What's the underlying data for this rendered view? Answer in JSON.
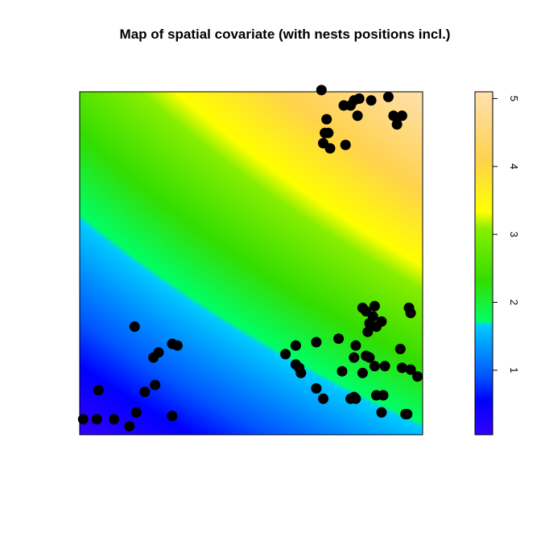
{
  "chart_data": {
    "type": "heatmap",
    "title": "Map of spatial covariate (with nests positions incl.)",
    "xlabel": "",
    "ylabel": "",
    "xlim": [
      0,
      1
    ],
    "ylim": [
      0,
      1
    ],
    "axes_visible": false,
    "field": {
      "description_of_surface": "smooth gradient increasing from bottom-left to top-right",
      "value_range": [
        0.05,
        5.1
      ]
    },
    "colorbar": {
      "range": [
        0.05,
        5.1
      ],
      "ticks": [
        1,
        2,
        3,
        4,
        5
      ],
      "tick_labels": [
        "1",
        "2",
        "3",
        "4",
        "5"
      ],
      "colors": [
        "#3300ff",
        "#0000ff",
        "#0055ff",
        "#00ccff",
        "#00ff66",
        "#33dd00",
        "#88ee00",
        "#ffff00",
        "#ffd24d",
        "#ffe0b0"
      ],
      "stops": [
        0.0,
        0.1,
        0.17,
        0.32,
        0.33,
        0.45,
        0.6,
        0.65,
        0.8,
        1.0
      ]
    },
    "points": [
      {
        "x": 0.01,
        "y": 0.045
      },
      {
        "x": 0.05,
        "y": 0.045
      },
      {
        "x": 0.1,
        "y": 0.045
      },
      {
        "x": 0.145,
        "y": 0.025
      },
      {
        "x": 0.165,
        "y": 0.065
      },
      {
        "x": 0.055,
        "y": 0.13
      },
      {
        "x": 0.19,
        "y": 0.125
      },
      {
        "x": 0.22,
        "y": 0.145
      },
      {
        "x": 0.27,
        "y": 0.055
      },
      {
        "x": 0.16,
        "y": 0.315
      },
      {
        "x": 0.215,
        "y": 0.225
      },
      {
        "x": 0.23,
        "y": 0.24
      },
      {
        "x": 0.27,
        "y": 0.265
      },
      {
        "x": 0.285,
        "y": 0.26
      },
      {
        "x": 0.6,
        "y": 0.235
      },
      {
        "x": 0.63,
        "y": 0.26
      },
      {
        "x": 0.63,
        "y": 0.205
      },
      {
        "x": 0.64,
        "y": 0.195
      },
      {
        "x": 0.645,
        "y": 0.18
      },
      {
        "x": 0.69,
        "y": 0.135
      },
      {
        "x": 0.71,
        "y": 0.105
      },
      {
        "x": 0.69,
        "y": 0.27
      },
      {
        "x": 0.755,
        "y": 0.28
      },
      {
        "x": 0.765,
        "y": 0.185
      },
      {
        "x": 0.79,
        "y": 0.105
      },
      {
        "x": 0.8,
        "y": 0.11
      },
      {
        "x": 0.805,
        "y": 0.105
      },
      {
        "x": 0.8,
        "y": 0.225
      },
      {
        "x": 0.805,
        "y": 0.26
      },
      {
        "x": 0.825,
        "y": 0.18
      },
      {
        "x": 0.835,
        "y": 0.23
      },
      {
        "x": 0.845,
        "y": 0.225
      },
      {
        "x": 0.86,
        "y": 0.2
      },
      {
        "x": 0.865,
        "y": 0.115
      },
      {
        "x": 0.885,
        "y": 0.115
      },
      {
        "x": 0.88,
        "y": 0.065
      },
      {
        "x": 0.89,
        "y": 0.2
      },
      {
        "x": 0.95,
        "y": 0.06
      },
      {
        "x": 0.94,
        "y": 0.195
      },
      {
        "x": 0.935,
        "y": 0.25
      },
      {
        "x": 0.965,
        "y": 0.19
      },
      {
        "x": 0.985,
        "y": 0.17
      },
      {
        "x": 0.955,
        "y": 0.06
      },
      {
        "x": 0.84,
        "y": 0.3
      },
      {
        "x": 0.845,
        "y": 0.325
      },
      {
        "x": 0.855,
        "y": 0.345
      },
      {
        "x": 0.865,
        "y": 0.315
      },
      {
        "x": 0.835,
        "y": 0.36
      },
      {
        "x": 0.86,
        "y": 0.375
      },
      {
        "x": 0.88,
        "y": 0.33
      },
      {
        "x": 0.825,
        "y": 0.37
      },
      {
        "x": 0.96,
        "y": 0.37
      },
      {
        "x": 0.965,
        "y": 0.355
      },
      {
        "x": 0.705,
        "y": 1.005
      },
      {
        "x": 0.72,
        "y": 0.92
      },
      {
        "x": 0.715,
        "y": 0.88
      },
      {
        "x": 0.725,
        "y": 0.88
      },
      {
        "x": 0.71,
        "y": 0.85
      },
      {
        "x": 0.73,
        "y": 0.835
      },
      {
        "x": 0.77,
        "y": 0.96
      },
      {
        "x": 0.79,
        "y": 0.96
      },
      {
        "x": 0.8,
        "y": 0.975
      },
      {
        "x": 0.81,
        "y": 0.93
      },
      {
        "x": 0.815,
        "y": 0.98
      },
      {
        "x": 0.85,
        "y": 0.975
      },
      {
        "x": 0.775,
        "y": 0.845
      },
      {
        "x": 0.9,
        "y": 0.985
      },
      {
        "x": 0.915,
        "y": 0.93
      },
      {
        "x": 0.925,
        "y": 0.905
      },
      {
        "x": 0.94,
        "y": 0.93
      }
    ]
  }
}
